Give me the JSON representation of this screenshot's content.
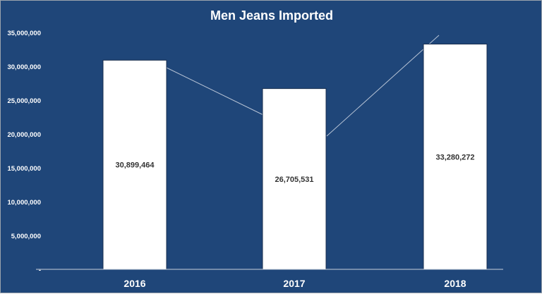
{
  "chart_data": {
    "type": "bar",
    "title": "Men Jeans Imported",
    "categories": [
      "2016",
      "2017",
      "2018"
    ],
    "values": [
      30899464,
      26705531,
      33280272
    ],
    "data_labels": [
      "30,899,464",
      "26,705,531",
      "33,280,272"
    ],
    "ylim": [
      0,
      35000000
    ],
    "yticks": [
      0,
      5000000,
      10000000,
      15000000,
      20000000,
      25000000,
      30000000,
      35000000
    ],
    "ytick_labels": [
      "-",
      "5,000,000",
      "10,000,000",
      "15,000,000",
      "20,000,000",
      "25,000,000",
      "30,000,000",
      "35,000,000"
    ],
    "grid": false,
    "legend": "none",
    "colors": {
      "background": "#1F4679",
      "bar": "#FFFFFF",
      "text": "#FFFFFF",
      "label": "#333333",
      "trend_line": "#B8C4D6"
    }
  }
}
